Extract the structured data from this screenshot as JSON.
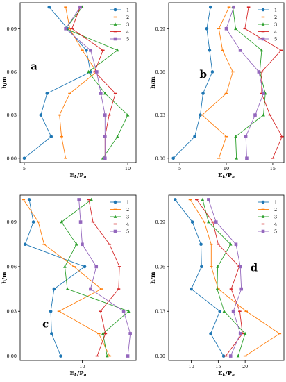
{
  "colors": [
    "#1f77b4",
    "#ff7f0e",
    "#2ca02c",
    "#d62728",
    "#9467bd"
  ],
  "chart_data": [
    {
      "type": "line",
      "panel_label": "a",
      "xlabel": "E_k/P_a",
      "ylabel": "h/m",
      "x_ticks": [
        5,
        10
      ],
      "y_ticks": [
        0.0,
        0.03,
        0.06,
        0.09
      ],
      "y_tick_labels": [
        "0.00",
        "0.03",
        "0.06",
        "0.09"
      ],
      "xlim": [
        4.8,
        10.4
      ],
      "ylim": [
        -0.003,
        0.108
      ],
      "y": [
        0.0,
        0.015,
        0.03,
        0.045,
        0.06,
        0.075,
        0.09,
        0.105
      ],
      "legend_position": "upper-right",
      "series": [
        {
          "name": "1",
          "values": [
            5.0,
            6.3,
            5.8,
            6.1,
            8.2,
            8.0,
            7.1,
            6.2
          ]
        },
        {
          "name": "2",
          "values": [
            7.0,
            6.8,
            6.7,
            7.2,
            8.5,
            7.8,
            7.2,
            7.0
          ]
        },
        {
          "name": "3",
          "values": [
            8.8,
            9.5,
            10.0,
            8.9,
            8.1,
            9.5,
            7.0,
            7.8
          ]
        },
        {
          "name": "4",
          "values": [
            8.9,
            8.9,
            9.1,
            9.4,
            8.4,
            8.8,
            7.3,
            7.7
          ]
        },
        {
          "name": "5",
          "values": [
            8.9,
            8.9,
            8.9,
            8.7,
            8.5,
            8.2,
            7.0,
            7.7
          ]
        }
      ]
    },
    {
      "type": "line",
      "panel_label": "b",
      "xlabel": "E_k/P_a",
      "ylabel": "h/m",
      "x_ticks": [
        5,
        10,
        15
      ],
      "y_ticks": [
        0.0,
        0.03,
        0.06,
        0.09
      ],
      "y_tick_labels": [
        "0.00",
        "0.03",
        "0.06",
        "0.09"
      ],
      "xlim": [
        3.8,
        16.2
      ],
      "ylim": [
        -0.003,
        0.108
      ],
      "y": [
        0.0,
        0.015,
        0.03,
        0.045,
        0.06,
        0.075,
        0.09,
        0.105
      ],
      "legend_position": "upper-right",
      "series": [
        {
          "name": "1",
          "values": [
            4.3,
            6.6,
            7.2,
            7.5,
            8.5,
            8.2,
            7.9,
            8.3
          ]
        },
        {
          "name": "2",
          "values": [
            9.2,
            10.0,
            7.4,
            10.0,
            10.7,
            9.6,
            9.2,
            10.3
          ]
        },
        {
          "name": "3",
          "values": [
            11.1,
            11.0,
            14.0,
            14.2,
            13.6,
            13.8,
            11.0,
            10.7
          ]
        },
        {
          "name": "4",
          "values": [
            15.0,
            16.0,
            14.7,
            13.8,
            13.8,
            15.9,
            12.0,
            12.4
          ]
        },
        {
          "name": "5",
          "values": [
            12.2,
            12.1,
            13.1,
            14.0,
            13.5,
            11.5,
            10.0,
            10.8
          ]
        }
      ]
    },
    {
      "type": "line",
      "panel_label": "c",
      "xlabel": "E_k/P_a",
      "ylabel": "h/m",
      "x_ticks": [
        10
      ],
      "y_ticks": [
        0.0,
        0.03,
        0.06,
        0.09
      ],
      "y_tick_labels": [
        "0.00",
        "0.03",
        "0.06",
        "0.09"
      ],
      "xlim": [
        2.5,
        16.5
      ],
      "ylim": [
        -0.003,
        0.108
      ],
      "y": [
        0.0,
        0.015,
        0.03,
        0.045,
        0.06,
        0.075,
        0.09,
        0.105
      ],
      "legend_position": "upper-right",
      "series": [
        {
          "name": "1",
          "values": [
            7.4,
            6.3,
            6.2,
            6.6,
            10.3,
            3.1,
            4.1,
            3.6
          ]
        },
        {
          "name": "2",
          "values": [
            13.3,
            12.0,
            7.2,
            12.3,
            9.0,
            5.4,
            4.7,
            2.9
          ]
        },
        {
          "name": "3",
          "values": [
            13.0,
            12.5,
            15.6,
            8.2,
            7.9,
            9.3,
            7.5,
            11.1
          ]
        },
        {
          "name": "4",
          "values": [
            11.8,
            12.8,
            12.2,
            14.4,
            14.5,
            13.3,
            11.3,
            10.8
          ]
        },
        {
          "name": "5",
          "values": [
            15.5,
            15.8,
            15.0,
            11.0,
            11.7,
            10.0,
            9.8,
            9.6
          ]
        }
      ]
    },
    {
      "type": "line",
      "panel_label": "d",
      "xlabel": "E_k/P_a",
      "ylabel": "h/m",
      "x_ticks": [
        10,
        15,
        20
      ],
      "y_ticks": [
        0.0,
        0.03,
        0.06,
        0.09
      ],
      "y_tick_labels": [
        "0.00",
        "0.03",
        "0.06",
        "0.09"
      ],
      "xlim": [
        5.8,
        27.2
      ],
      "ylim": [
        -0.003,
        0.108
      ],
      "y": [
        0.0,
        0.015,
        0.03,
        0.045,
        0.06,
        0.075,
        0.09,
        0.105
      ],
      "legend_position": "upper-right",
      "series": [
        {
          "name": "1",
          "values": [
            16.0,
            13.6,
            15.3,
            10.0,
            11.9,
            11.8,
            10.2,
            7.0
          ]
        },
        {
          "name": "2",
          "values": [
            20.0,
            26.4,
            20.2,
            15.0,
            13.7,
            13.7,
            12.4,
            9.8
          ]
        },
        {
          "name": "3",
          "values": [
            18.7,
            20.0,
            16.1,
            14.8,
            14.9,
            17.3,
            13.2,
            12.1
          ]
        },
        {
          "name": "4",
          "values": [
            16.4,
            19.5,
            19.0,
            17.4,
            18.9,
            15.0,
            14.0,
            11.0
          ]
        },
        {
          "name": "5",
          "values": [
            17.3,
            19.1,
            17.8,
            19.3,
            19.1,
            18.3,
            14.6,
            13.2
          ]
        }
      ]
    }
  ]
}
